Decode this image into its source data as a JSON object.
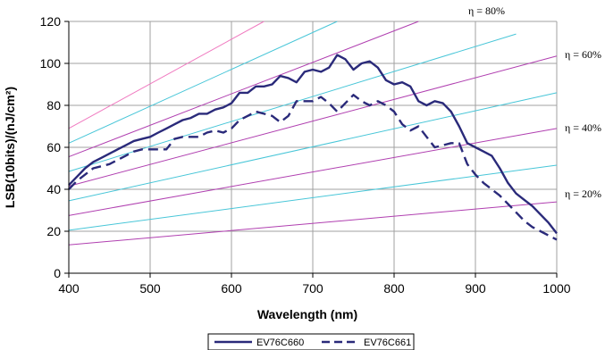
{
  "chart_data": {
    "type": "line",
    "title": "",
    "xlabel": "Wavelength (nm)",
    "ylabel": "LSB(10bits)/(nJ/cm²)",
    "xlim": [
      400,
      1000
    ],
    "ylim": [
      0,
      120
    ],
    "x_ticks": [
      400,
      500,
      600,
      700,
      800,
      900,
      1000
    ],
    "y_ticks": [
      0,
      20,
      40,
      60,
      80,
      100,
      120
    ],
    "grid": true,
    "legend_position": "bottom",
    "series": [
      {
        "name": "EV76C660",
        "color": "#2a2a7a",
        "dash": "solid",
        "x": [
          400,
          410,
          420,
          430,
          440,
          450,
          460,
          470,
          480,
          490,
          500,
          510,
          520,
          530,
          540,
          550,
          560,
          570,
          580,
          590,
          600,
          610,
          620,
          630,
          640,
          650,
          660,
          670,
          680,
          690,
          700,
          710,
          720,
          730,
          740,
          750,
          760,
          770,
          780,
          790,
          800,
          810,
          820,
          830,
          840,
          850,
          860,
          870,
          880,
          890,
          900,
          910,
          920,
          930,
          940,
          950,
          960,
          970,
          980,
          990,
          1000
        ],
        "y": [
          42,
          46,
          50,
          53,
          55,
          57,
          59,
          61,
          63,
          64,
          65,
          67,
          69,
          71,
          73,
          74,
          76,
          76,
          78,
          79,
          81,
          86,
          86,
          89,
          89,
          90,
          94,
          93,
          91,
          96,
          97,
          96,
          98,
          104,
          102,
          97,
          100,
          101,
          98,
          92,
          90,
          91,
          89,
          82,
          80,
          82,
          81,
          77,
          70,
          62,
          60,
          58,
          56,
          50,
          43,
          38,
          35,
          32,
          28,
          24,
          19
        ]
      },
      {
        "name": "EV76C661",
        "color": "#2a2a7a",
        "dash": "dashed",
        "x": [
          400,
          410,
          420,
          430,
          440,
          450,
          460,
          470,
          480,
          490,
          500,
          510,
          520,
          530,
          540,
          550,
          560,
          570,
          580,
          590,
          600,
          610,
          620,
          630,
          640,
          650,
          660,
          670,
          680,
          690,
          700,
          710,
          720,
          730,
          740,
          750,
          760,
          770,
          780,
          790,
          800,
          810,
          820,
          830,
          840,
          850,
          860,
          870,
          880,
          890,
          900,
          910,
          920,
          930,
          940,
          950,
          960,
          970,
          980,
          990,
          1000
        ],
        "y": [
          40,
          44,
          47,
          50,
          51,
          52,
          54,
          56,
          58,
          59,
          59,
          59,
          59,
          64,
          65,
          65,
          65,
          67,
          68,
          67,
          69,
          73,
          75,
          77,
          76,
          75,
          72,
          75,
          82,
          82,
          82,
          84,
          81,
          77,
          81,
          85,
          82,
          80,
          82,
          80,
          77,
          71,
          68,
          70,
          65,
          60,
          61,
          62,
          62,
          52,
          47,
          43,
          40,
          37,
          33,
          29,
          25,
          22,
          20,
          18,
          16
        ]
      }
    ],
    "efficiency_labels": [
      "η = 20%",
      "η = 40%",
      "η = 60%",
      "η = 80%"
    ],
    "reference_lines": [
      {
        "color": "#b03fb0",
        "x": [
          400,
          1000
        ],
        "y": [
          13.5,
          34
        ]
      },
      {
        "color": "#48c6d8",
        "x": [
          400,
          1000
        ],
        "y": [
          20.5,
          51.5
        ]
      },
      {
        "color": "#b03fb0",
        "x": [
          400,
          1000
        ],
        "y": [
          27.5,
          69
        ]
      },
      {
        "color": "#48c6d8",
        "x": [
          400,
          1000
        ],
        "y": [
          34.5,
          86
        ]
      },
      {
        "color": "#b03fb0",
        "x": [
          400,
          1000
        ],
        "y": [
          41.5,
          103.5
        ]
      },
      {
        "color": "#48c6d8",
        "x": [
          400,
          950
        ],
        "y": [
          48.5,
          114
        ]
      },
      {
        "color": "#b03fb0",
        "x": [
          400,
          830
        ],
        "y": [
          55.5,
          120
        ]
      },
      {
        "color": "#48c6d8",
        "x": [
          400,
          730
        ],
        "y": [
          62,
          120
        ]
      },
      {
        "color": "#f07ac0",
        "x": [
          400,
          640
        ],
        "y": [
          69,
          120
        ]
      }
    ]
  }
}
